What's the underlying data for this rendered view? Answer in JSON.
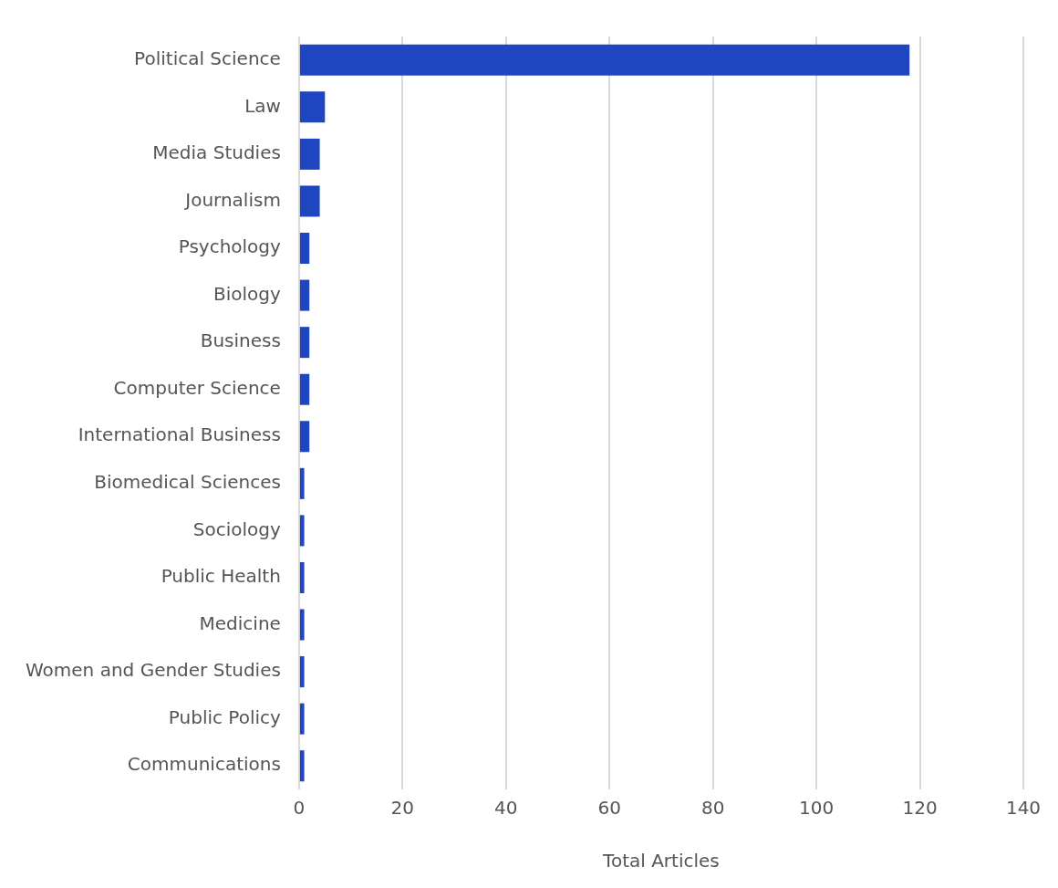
{
  "chart_data": {
    "type": "bar",
    "orientation": "horizontal",
    "xlabel": "Total Articles",
    "categories": [
      "Political Science",
      "Law",
      "Media Studies",
      "Journalism",
      "Psychology",
      "Biology",
      "Business",
      "Computer Science",
      "International Business",
      "Biomedical Sciences",
      "Sociology",
      "Public Health",
      "Medicine",
      "Women and Gender Studies",
      "Public Policy",
      "Communications"
    ],
    "values": [
      118,
      5,
      4,
      4,
      2,
      2,
      2,
      2,
      2,
      1,
      1,
      1,
      1,
      1,
      1,
      1
    ],
    "color": "#1f45c1",
    "xlim": [
      0,
      140
    ],
    "xticks": [
      0,
      20,
      40,
      60,
      80,
      100,
      120,
      140
    ],
    "grid": "x",
    "legend": false
  }
}
